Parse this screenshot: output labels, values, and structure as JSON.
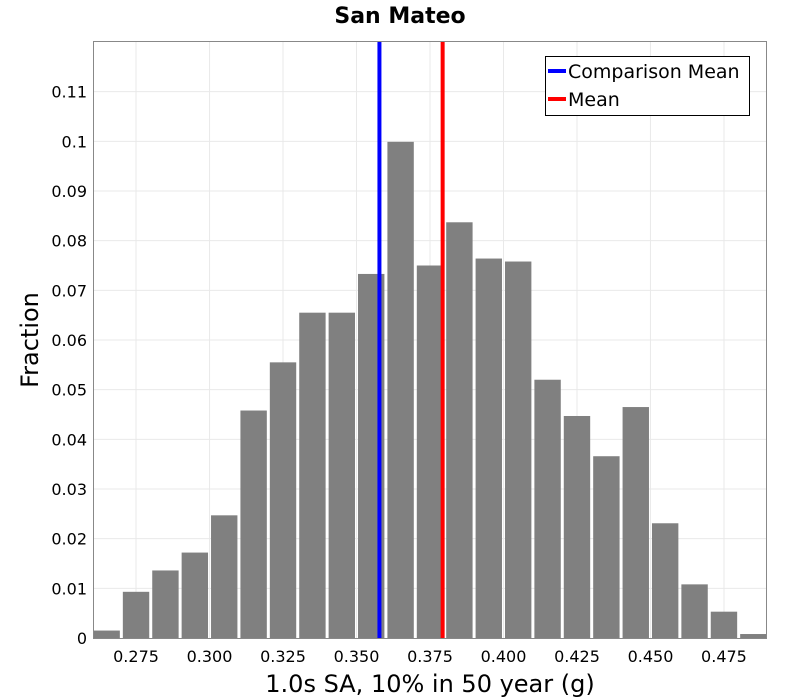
{
  "chart_data": {
    "type": "bar",
    "title": "San Mateo",
    "xlabel": "1.0s SA, 10% in 50 year (g)",
    "ylabel": "Fraction",
    "xlim": [
      0.2607,
      0.4893
    ],
    "ylim": [
      0,
      0.12
    ],
    "grid": true,
    "legend_position": "top-right",
    "bin_width": 0.01,
    "bins": [
      {
        "center": 0.265,
        "value": 0.0015
      },
      {
        "center": 0.275,
        "value": 0.0093
      },
      {
        "center": 0.285,
        "value": 0.0136
      },
      {
        "center": 0.295,
        "value": 0.0172
      },
      {
        "center": 0.305,
        "value": 0.0247
      },
      {
        "center": 0.315,
        "value": 0.0458
      },
      {
        "center": 0.325,
        "value": 0.0555
      },
      {
        "center": 0.335,
        "value": 0.0655
      },
      {
        "center": 0.345,
        "value": 0.0655
      },
      {
        "center": 0.355,
        "value": 0.0733
      },
      {
        "center": 0.365,
        "value": 0.0999
      },
      {
        "center": 0.375,
        "value": 0.075
      },
      {
        "center": 0.385,
        "value": 0.0837
      },
      {
        "center": 0.395,
        "value": 0.0764
      },
      {
        "center": 0.405,
        "value": 0.0758
      },
      {
        "center": 0.415,
        "value": 0.052
      },
      {
        "center": 0.425,
        "value": 0.0447
      },
      {
        "center": 0.435,
        "value": 0.0366
      },
      {
        "center": 0.445,
        "value": 0.0465
      },
      {
        "center": 0.455,
        "value": 0.0231
      },
      {
        "center": 0.465,
        "value": 0.0108
      },
      {
        "center": 0.475,
        "value": 0.0053
      },
      {
        "center": 0.485,
        "value": 0.0008
      }
    ],
    "xticks": [
      "0.275",
      "0.300",
      "0.325",
      "0.350",
      "0.375",
      "0.400",
      "0.425",
      "0.450",
      "0.475"
    ],
    "yticks": [
      "0",
      "0.01",
      "0.02",
      "0.03",
      "0.04",
      "0.05",
      "0.06",
      "0.07",
      "0.08",
      "0.09",
      "0.1",
      "0.11"
    ],
    "reference_lines": [
      {
        "name": "Comparison Mean",
        "x": 0.3578,
        "color": "#0000ff"
      },
      {
        "name": "Mean",
        "x": 0.3793,
        "color": "#ff0000"
      }
    ],
    "bar_color": "#808080",
    "grid_color": "#e9e9e9"
  }
}
